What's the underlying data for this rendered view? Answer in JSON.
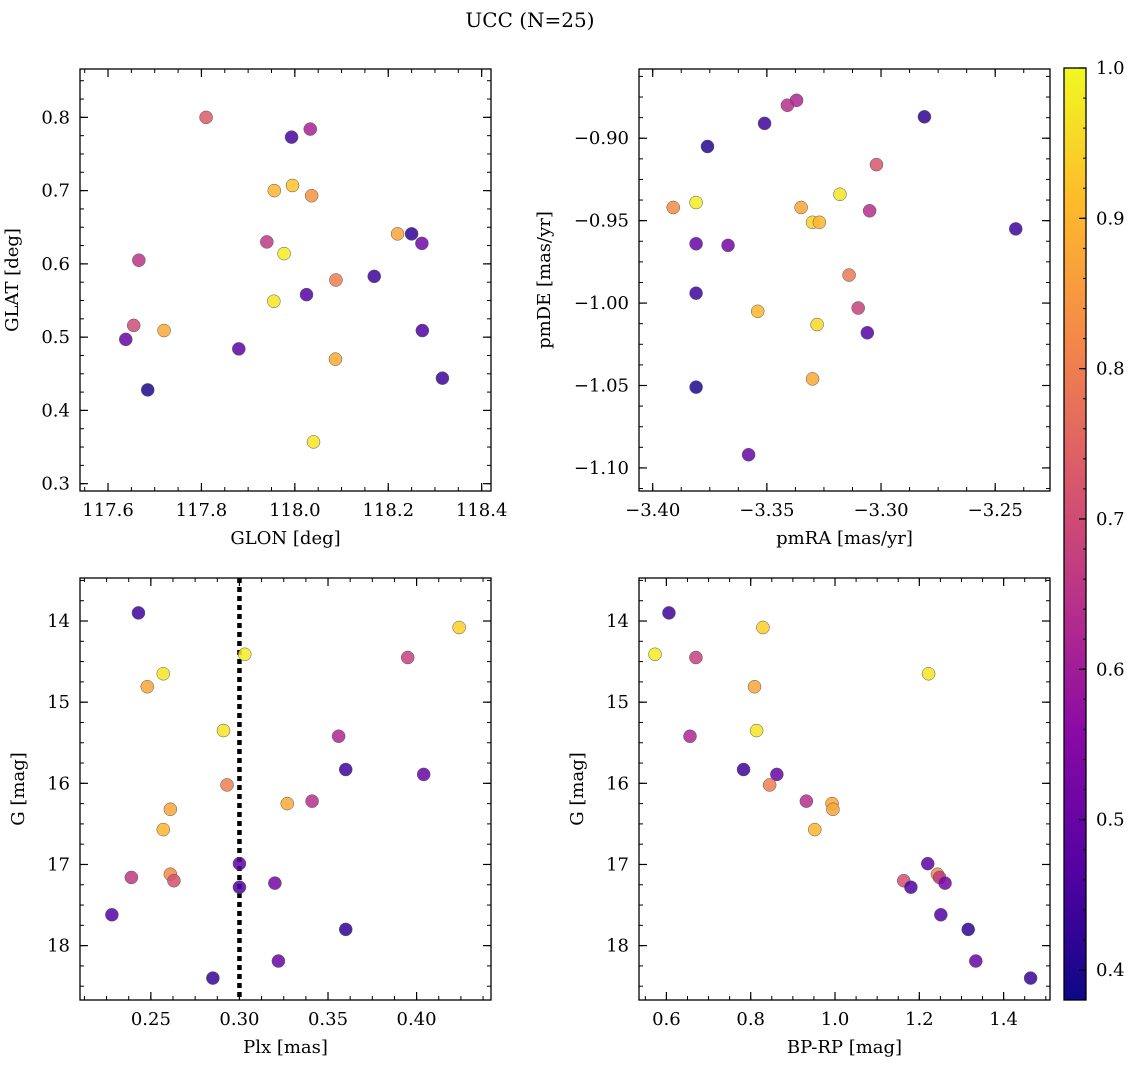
{
  "title": "UCC (N=25)",
  "colorbar": {
    "range": [
      0.38,
      1.0
    ],
    "ticks": [
      0.4,
      0.5,
      0.6,
      0.7,
      0.8,
      0.9,
      1.0
    ],
    "tick_labels": [
      "0.4",
      "0.5",
      "0.6",
      "0.7",
      "0.8",
      "0.9",
      "1.0"
    ],
    "colormap": "plasma"
  },
  "chart_data": [
    {
      "type": "scatter",
      "id": "glon-glat",
      "xlabel": "GLON [deg]",
      "ylabel": "GLAT [deg]",
      "xlim": [
        117.54,
        118.42
      ],
      "ylim": [
        0.29,
        0.866
      ],
      "y_inverted": false,
      "xticks": [
        117.6,
        117.8,
        118.0,
        118.2,
        118.4
      ],
      "xtick_labels": [
        "117.6",
        "117.8",
        "118.0",
        "118.2",
        "118.4"
      ],
      "yticks": [
        0.3,
        0.4,
        0.5,
        0.6,
        0.7,
        0.8
      ],
      "ytick_labels": [
        "0.3",
        "0.4",
        "0.5",
        "0.6",
        "0.7",
        "0.8"
      ],
      "points": [
        {
          "x": 117.81,
          "y": 0.8,
          "c": 0.73
        },
        {
          "x": 117.993,
          "y": 0.773,
          "c": 0.45
        },
        {
          "x": 118.033,
          "y": 0.784,
          "c": 0.61
        },
        {
          "x": 117.956,
          "y": 0.7,
          "c": 0.9
        },
        {
          "x": 117.995,
          "y": 0.707,
          "c": 0.92
        },
        {
          "x": 118.036,
          "y": 0.693,
          "c": 0.84
        },
        {
          "x": 118.22,
          "y": 0.641,
          "c": 0.87
        },
        {
          "x": 118.25,
          "y": 0.641,
          "c": 0.42
        },
        {
          "x": 118.272,
          "y": 0.628,
          "c": 0.52
        },
        {
          "x": 117.94,
          "y": 0.63,
          "c": 0.66
        },
        {
          "x": 117.977,
          "y": 0.614,
          "c": 0.98
        },
        {
          "x": 117.666,
          "y": 0.605,
          "c": 0.65
        },
        {
          "x": 118.17,
          "y": 0.583,
          "c": 0.44
        },
        {
          "x": 118.088,
          "y": 0.578,
          "c": 0.8
        },
        {
          "x": 118.025,
          "y": 0.558,
          "c": 0.47
        },
        {
          "x": 117.955,
          "y": 0.549,
          "c": 0.97
        },
        {
          "x": 117.655,
          "y": 0.516,
          "c": 0.7
        },
        {
          "x": 117.72,
          "y": 0.509,
          "c": 0.88
        },
        {
          "x": 118.273,
          "y": 0.509,
          "c": 0.46
        },
        {
          "x": 117.638,
          "y": 0.497,
          "c": 0.5
        },
        {
          "x": 117.88,
          "y": 0.484,
          "c": 0.48
        },
        {
          "x": 118.087,
          "y": 0.47,
          "c": 0.88
        },
        {
          "x": 118.316,
          "y": 0.444,
          "c": 0.44
        },
        {
          "x": 117.685,
          "y": 0.428,
          "c": 0.4
        },
        {
          "x": 118.04,
          "y": 0.357,
          "c": 0.97
        }
      ]
    },
    {
      "type": "scatter",
      "id": "pmra-pmde",
      "xlabel": "pmRA [mas/yr]",
      "ylabel": "pmDE [mas/yr]",
      "xlim": [
        -3.406,
        -3.226
      ],
      "ylim": [
        -1.114,
        -0.858
      ],
      "y_inverted": false,
      "xticks": [
        -3.4,
        -3.35,
        -3.3,
        -3.25
      ],
      "xtick_labels": [
        "−3.40",
        "−3.35",
        "−3.30",
        "−3.25"
      ],
      "yticks": [
        -1.1,
        -1.05,
        -1.0,
        -0.95,
        -0.9
      ],
      "ytick_labels": [
        "−1.10",
        "−1.05",
        "−1.00",
        "−0.95",
        "−0.90"
      ],
      "points": [
        {
          "x": -3.337,
          "y": -0.877,
          "c": 0.62
        },
        {
          "x": -3.341,
          "y": -0.88,
          "c": 0.64
        },
        {
          "x": -3.351,
          "y": -0.891,
          "c": 0.44
        },
        {
          "x": -3.281,
          "y": -0.887,
          "c": 0.42
        },
        {
          "x": -3.376,
          "y": -0.905,
          "c": 0.41
        },
        {
          "x": -3.302,
          "y": -0.916,
          "c": 0.72
        },
        {
          "x": -3.318,
          "y": -0.934,
          "c": 0.97
        },
        {
          "x": -3.391,
          "y": -0.942,
          "c": 0.83
        },
        {
          "x": -3.381,
          "y": -0.939,
          "c": 0.98
        },
        {
          "x": -3.335,
          "y": -0.942,
          "c": 0.87
        },
        {
          "x": -3.305,
          "y": -0.944,
          "c": 0.64
        },
        {
          "x": -3.33,
          "y": -0.951,
          "c": 0.94
        },
        {
          "x": -3.327,
          "y": -0.951,
          "c": 0.9
        },
        {
          "x": -3.241,
          "y": -0.955,
          "c": 0.44
        },
        {
          "x": -3.381,
          "y": -0.964,
          "c": 0.5
        },
        {
          "x": -3.367,
          "y": -0.965,
          "c": 0.52
        },
        {
          "x": -3.314,
          "y": -0.983,
          "c": 0.79
        },
        {
          "x": -3.381,
          "y": -0.994,
          "c": 0.44
        },
        {
          "x": -3.31,
          "y": -1.003,
          "c": 0.68
        },
        {
          "x": -3.354,
          "y": -1.005,
          "c": 0.9
        },
        {
          "x": -3.328,
          "y": -1.013,
          "c": 0.95
        },
        {
          "x": -3.306,
          "y": -1.018,
          "c": 0.47
        },
        {
          "x": -3.33,
          "y": -1.046,
          "c": 0.88
        },
        {
          "x": -3.381,
          "y": -1.051,
          "c": 0.4
        },
        {
          "x": -3.358,
          "y": -1.092,
          "c": 0.5
        }
      ]
    },
    {
      "type": "scatter",
      "id": "plx-g",
      "xlabel": "Plx [mas]",
      "ylabel": "G [mag]",
      "xlim": [
        0.21,
        0.442
      ],
      "ylim": [
        18.67,
        13.47
      ],
      "y_inverted": true,
      "vline": 0.3,
      "xticks": [
        0.25,
        0.3,
        0.35,
        0.4
      ],
      "xtick_labels": [
        "0.25",
        "0.30",
        "0.35",
        "0.40"
      ],
      "yticks": [
        14,
        15,
        16,
        17,
        18
      ],
      "ytick_labels": [
        "14",
        "15",
        "16",
        "17",
        "18"
      ],
      "points": [
        {
          "x": 0.243,
          "y": 13.9,
          "c": 0.44
        },
        {
          "x": 0.424,
          "y": 14.08,
          "c": 0.94
        },
        {
          "x": 0.303,
          "y": 14.41,
          "c": 0.98
        },
        {
          "x": 0.395,
          "y": 14.45,
          "c": 0.68
        },
        {
          "x": 0.257,
          "y": 14.65,
          "c": 0.97
        },
        {
          "x": 0.248,
          "y": 14.81,
          "c": 0.87
        },
        {
          "x": 0.291,
          "y": 15.35,
          "c": 0.97
        },
        {
          "x": 0.356,
          "y": 15.42,
          "c": 0.62
        },
        {
          "x": 0.36,
          "y": 15.83,
          "c": 0.44
        },
        {
          "x": 0.404,
          "y": 15.89,
          "c": 0.5
        },
        {
          "x": 0.293,
          "y": 16.02,
          "c": 0.8
        },
        {
          "x": 0.341,
          "y": 16.22,
          "c": 0.64
        },
        {
          "x": 0.327,
          "y": 16.25,
          "c": 0.88
        },
        {
          "x": 0.261,
          "y": 16.32,
          "c": 0.87
        },
        {
          "x": 0.257,
          "y": 16.57,
          "c": 0.9
        },
        {
          "x": 0.3,
          "y": 16.99,
          "c": 0.48
        },
        {
          "x": 0.261,
          "y": 17.12,
          "c": 0.82
        },
        {
          "x": 0.239,
          "y": 17.16,
          "c": 0.66
        },
        {
          "x": 0.263,
          "y": 17.2,
          "c": 0.71
        },
        {
          "x": 0.32,
          "y": 17.23,
          "c": 0.52
        },
        {
          "x": 0.3,
          "y": 17.28,
          "c": 0.46
        },
        {
          "x": 0.228,
          "y": 17.62,
          "c": 0.47
        },
        {
          "x": 0.36,
          "y": 17.8,
          "c": 0.42
        },
        {
          "x": 0.322,
          "y": 18.19,
          "c": 0.5
        },
        {
          "x": 0.285,
          "y": 18.4,
          "c": 0.43
        }
      ]
    },
    {
      "type": "scatter",
      "id": "bprp-g",
      "xlabel": "BP-RP [mag]",
      "ylabel": "G [mag]",
      "xlim": [
        0.535,
        1.51
      ],
      "ylim": [
        18.67,
        13.47
      ],
      "y_inverted": true,
      "xticks": [
        0.6,
        0.8,
        1.0,
        1.2,
        1.4
      ],
      "xtick_labels": [
        "0.6",
        "0.8",
        "1.0",
        "1.2",
        "1.4"
      ],
      "yticks": [
        14,
        15,
        16,
        17,
        18
      ],
      "ytick_labels": [
        "14",
        "15",
        "16",
        "17",
        "18"
      ],
      "points": [
        {
          "x": 0.606,
          "y": 13.9,
          "c": 0.44
        },
        {
          "x": 0.829,
          "y": 14.08,
          "c": 0.94
        },
        {
          "x": 0.573,
          "y": 14.41,
          "c": 0.98
        },
        {
          "x": 0.67,
          "y": 14.45,
          "c": 0.68
        },
        {
          "x": 1.222,
          "y": 14.65,
          "c": 0.97
        },
        {
          "x": 0.809,
          "y": 14.81,
          "c": 0.87
        },
        {
          "x": 0.814,
          "y": 15.35,
          "c": 0.97
        },
        {
          "x": 0.656,
          "y": 15.42,
          "c": 0.62
        },
        {
          "x": 0.783,
          "y": 15.83,
          "c": 0.44
        },
        {
          "x": 0.862,
          "y": 15.89,
          "c": 0.5
        },
        {
          "x": 0.845,
          "y": 16.02,
          "c": 0.8
        },
        {
          "x": 0.932,
          "y": 16.22,
          "c": 0.64
        },
        {
          "x": 0.993,
          "y": 16.25,
          "c": 0.88
        },
        {
          "x": 0.995,
          "y": 16.32,
          "c": 0.87
        },
        {
          "x": 0.952,
          "y": 16.57,
          "c": 0.9
        },
        {
          "x": 1.22,
          "y": 16.99,
          "c": 0.48
        },
        {
          "x": 1.243,
          "y": 17.12,
          "c": 0.82
        },
        {
          "x": 1.248,
          "y": 17.16,
          "c": 0.66
        },
        {
          "x": 1.163,
          "y": 17.2,
          "c": 0.71
        },
        {
          "x": 1.261,
          "y": 17.23,
          "c": 0.52
        },
        {
          "x": 1.18,
          "y": 17.28,
          "c": 0.46
        },
        {
          "x": 1.251,
          "y": 17.62,
          "c": 0.47
        },
        {
          "x": 1.316,
          "y": 17.8,
          "c": 0.42
        },
        {
          "x": 1.334,
          "y": 18.19,
          "c": 0.5
        },
        {
          "x": 1.464,
          "y": 18.4,
          "c": 0.43
        }
      ]
    }
  ]
}
